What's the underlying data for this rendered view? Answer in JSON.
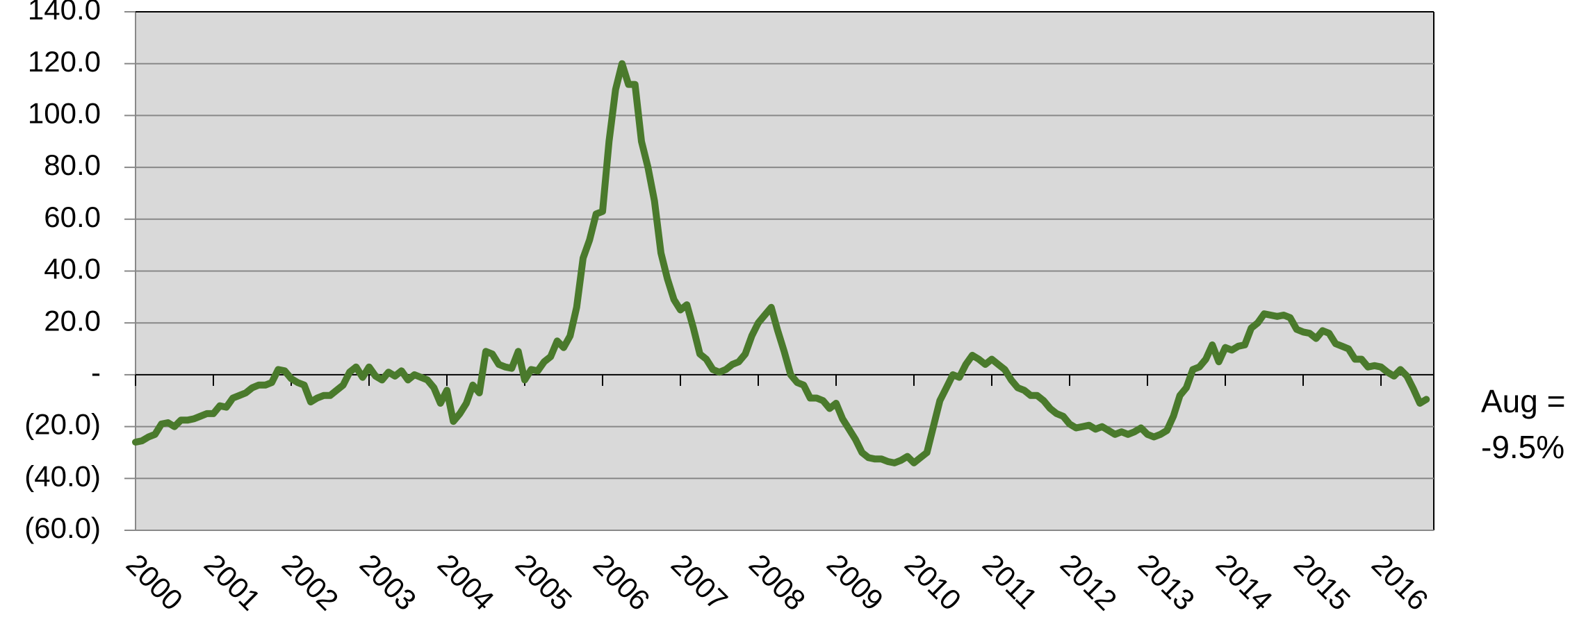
{
  "chart_data": {
    "type": "line",
    "categories": [
      "2000",
      null,
      null,
      null,
      null,
      null,
      null,
      null,
      null,
      null,
      null,
      null,
      "2001",
      null,
      null,
      null,
      null,
      null,
      null,
      null,
      null,
      null,
      null,
      null,
      "2002",
      null,
      null,
      null,
      null,
      null,
      null,
      null,
      null,
      null,
      null,
      null,
      "2003",
      null,
      null,
      null,
      null,
      null,
      null,
      null,
      null,
      null,
      null,
      null,
      "2004",
      null,
      null,
      null,
      null,
      null,
      null,
      null,
      null,
      null,
      null,
      null,
      "2005",
      null,
      null,
      null,
      null,
      null,
      null,
      null,
      null,
      null,
      null,
      null,
      "2006",
      null,
      null,
      null,
      null,
      null,
      null,
      null,
      null,
      null,
      null,
      null,
      "2007",
      null,
      null,
      null,
      null,
      null,
      null,
      null,
      null,
      null,
      null,
      null,
      "2008",
      null,
      null,
      null,
      null,
      null,
      null,
      null,
      null,
      null,
      null,
      null,
      "2009",
      null,
      null,
      null,
      null,
      null,
      null,
      null,
      null,
      null,
      null,
      null,
      "2010",
      null,
      null,
      null,
      null,
      null,
      null,
      null,
      null,
      null,
      null,
      null,
      "2011",
      null,
      null,
      null,
      null,
      null,
      null,
      null,
      null,
      null,
      null,
      null,
      "2012",
      null,
      null,
      null,
      null,
      null,
      null,
      null,
      null,
      null,
      null,
      null,
      "2013",
      null,
      null,
      null,
      null,
      null,
      null,
      null,
      null,
      null,
      null,
      null,
      "2014",
      null,
      null,
      null,
      null,
      null,
      null,
      null,
      null,
      null,
      null,
      null,
      "2015",
      null,
      null,
      null,
      null,
      null,
      null,
      null,
      null,
      null,
      null,
      null,
      "2016",
      null,
      null,
      null,
      null,
      null,
      null,
      null
    ],
    "series": [
      {
        "color": "#4a7a2c",
        "values": [
          -26,
          -25.5,
          -24,
          -23,
          -19,
          -18.5,
          -20,
          -17.5,
          -17.5,
          -17,
          -16,
          -15,
          -15,
          -12,
          -12.5,
          -9,
          -8,
          -7,
          -5,
          -4,
          -4,
          -3,
          2,
          1.5,
          -1.5,
          -3,
          -4,
          -10.5,
          -9,
          -8,
          -8,
          -6,
          -4,
          1,
          3,
          -1,
          3,
          -0.5,
          -2,
          1,
          -0.5,
          1.5,
          -2,
          0,
          -1,
          -2,
          -5,
          -11,
          -6,
          -18,
          -15,
          -11,
          -4,
          -7,
          9,
          8,
          4,
          3,
          2.5,
          9,
          -2,
          2,
          1.5,
          5,
          7,
          13,
          10.5,
          15,
          26,
          45,
          52,
          62,
          63,
          90,
          110,
          120,
          112,
          112,
          90,
          80,
          67,
          47,
          37,
          29,
          25,
          27,
          18,
          8,
          6,
          2,
          1,
          2,
          4,
          5,
          8,
          15,
          20,
          23,
          26,
          17,
          9,
          0,
          -3,
          -4,
          -9,
          -9,
          -10,
          -13,
          -11,
          -17,
          -21,
          -25,
          -30,
          -32,
          -32.5,
          -32.5,
          -33.5,
          -34,
          -33,
          -31.5,
          -34,
          -32,
          -30,
          -20,
          -10,
          -5,
          0,
          -1,
          4,
          7.5,
          6,
          4,
          6,
          4,
          2,
          -2,
          -5,
          -6,
          -8,
          -8,
          -10,
          -13,
          -15,
          -16,
          -19,
          -20.5,
          -20,
          -19.5,
          -21,
          -20,
          -21.5,
          -23,
          -22,
          -23,
          -22,
          -20.5,
          -23,
          -24,
          -23,
          -21.5,
          -16,
          -8,
          -5,
          2,
          3,
          6,
          11.5,
          5,
          10.5,
          9.5,
          11,
          11.5,
          18,
          20,
          23.5,
          23,
          22.5,
          23,
          22,
          17.5,
          16.5,
          16,
          14,
          17,
          16,
          12,
          11,
          10,
          6,
          6,
          3,
          3.5,
          3,
          1,
          -0.5,
          2,
          -0.5,
          -5.5,
          -11,
          -9.5
        ]
      }
    ],
    "ylim": [
      -60,
      140
    ],
    "yticks": [
      {
        "value": -60,
        "label": "(60.0)"
      },
      {
        "value": -40,
        "label": "(40.0)"
      },
      {
        "value": -20,
        "label": "(20.0)"
      },
      {
        "value": 0,
        "label": "-"
      },
      {
        "value": 20,
        "label": "20.0"
      },
      {
        "value": 40,
        "label": "40.0"
      },
      {
        "value": 60,
        "label": "60.0"
      },
      {
        "value": 80,
        "label": "80.0"
      },
      {
        "value": 100,
        "label": "100.0"
      },
      {
        "value": 120,
        "label": "120.0"
      },
      {
        "value": 140,
        "label": "140.0"
      }
    ],
    "grid": true,
    "annotation": [
      "Aug =",
      "-9.5%"
    ]
  }
}
